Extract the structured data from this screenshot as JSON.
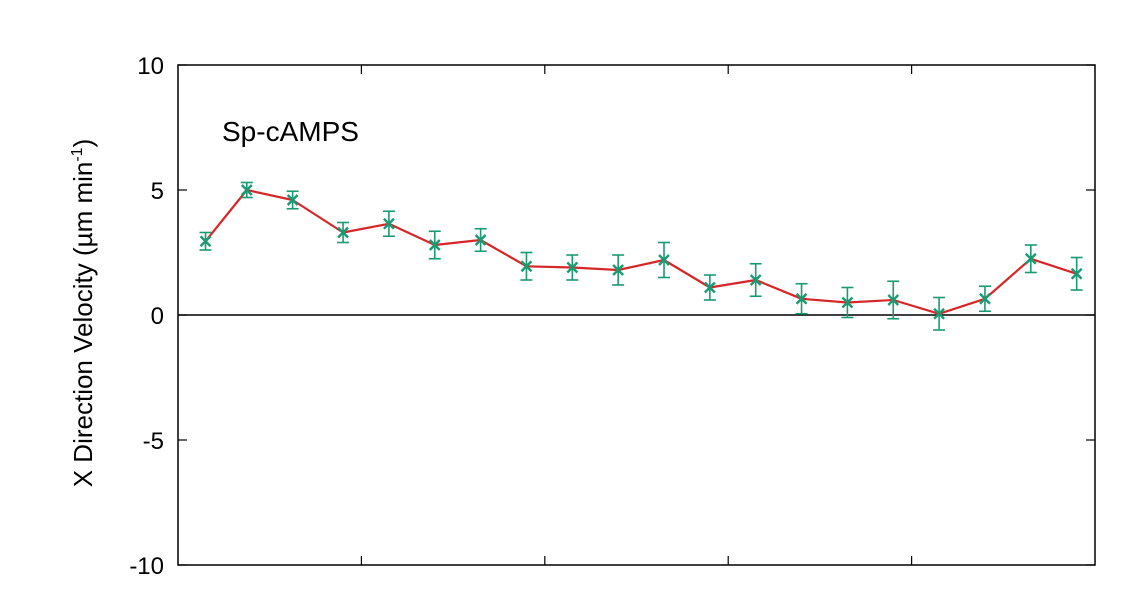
{
  "chart_data": {
    "type": "line",
    "title": "",
    "ylabel": {
      "main": "X Direction Velocity (µm min",
      "sup": "-1",
      "close": ")"
    },
    "xlabel": "",
    "annotation": "Sp-cAMPS",
    "ylim": [
      -10,
      10
    ],
    "yticks": [
      {
        "value": 10,
        "label": "10"
      },
      {
        "value": 5,
        "label": "5"
      },
      {
        "value": 0,
        "label": "0"
      },
      {
        "value": -5,
        "label": "-5"
      },
      {
        "value": -10,
        "label": "-10"
      }
    ],
    "xlim": [
      0,
      20
    ],
    "x_minor_ticks": [
      4,
      8,
      12,
      16
    ],
    "zero_line": true,
    "grid": false,
    "series": [
      {
        "line_color": "#d62728",
        "marker_color": "#1a9a72",
        "points": [
          {
            "x": 0.6,
            "y": 2.95,
            "err": 0.35
          },
          {
            "x": 1.5,
            "y": 5.0,
            "err": 0.3
          },
          {
            "x": 2.5,
            "y": 4.6,
            "err": 0.35
          },
          {
            "x": 3.6,
            "y": 3.3,
            "err": 0.4
          },
          {
            "x": 4.6,
            "y": 3.65,
            "err": 0.5
          },
          {
            "x": 5.6,
            "y": 2.8,
            "err": 0.55
          },
          {
            "x": 6.6,
            "y": 3.0,
            "err": 0.45
          },
          {
            "x": 7.6,
            "y": 1.95,
            "err": 0.55
          },
          {
            "x": 8.6,
            "y": 1.9,
            "err": 0.5
          },
          {
            "x": 9.6,
            "y": 1.8,
            "err": 0.6
          },
          {
            "x": 10.6,
            "y": 2.2,
            "err": 0.7
          },
          {
            "x": 11.6,
            "y": 1.1,
            "err": 0.5
          },
          {
            "x": 12.6,
            "y": 1.4,
            "err": 0.65
          },
          {
            "x": 13.6,
            "y": 0.65,
            "err": 0.6
          },
          {
            "x": 14.6,
            "y": 0.5,
            "err": 0.6
          },
          {
            "x": 15.6,
            "y": 0.6,
            "err": 0.75
          },
          {
            "x": 16.6,
            "y": 0.05,
            "err": 0.65
          },
          {
            "x": 17.6,
            "y": 0.65,
            "err": 0.5
          },
          {
            "x": 18.6,
            "y": 2.25,
            "err": 0.55
          },
          {
            "x": 19.6,
            "y": 1.65,
            "err": 0.65
          }
        ]
      }
    ]
  }
}
